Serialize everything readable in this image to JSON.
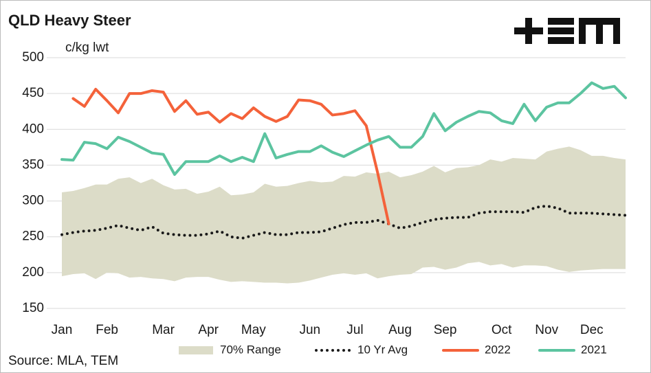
{
  "chart_data": {
    "type": "line",
    "title": "QLD Heavy Steer",
    "y_label": "c/kg lwt",
    "source": "Source: MLA, TEM",
    "categories": [
      "Jan",
      null,
      null,
      null,
      "Feb",
      null,
      null,
      null,
      null,
      "Mar",
      null,
      null,
      null,
      "Apr",
      null,
      null,
      null,
      "May",
      null,
      null,
      null,
      null,
      "Jun",
      null,
      null,
      null,
      "Jul",
      null,
      null,
      null,
      "Aug",
      null,
      null,
      null,
      "Sep",
      null,
      null,
      null,
      null,
      "Oct",
      null,
      null,
      null,
      "Nov",
      null,
      null,
      null,
      "Dec",
      null,
      null,
      null
    ],
    "ylim": [
      150,
      500
    ],
    "yticks": [
      150,
      200,
      250,
      300,
      350,
      400,
      450,
      500
    ],
    "grid": true,
    "series": [
      {
        "name": "70% Range",
        "color": "#dcdcc8",
        "low": [
          195,
          198,
          199,
          191,
          200,
          199,
          193,
          194,
          192,
          191,
          188,
          193,
          194,
          194,
          190,
          187,
          188,
          187,
          186,
          186,
          185,
          186,
          189,
          193,
          197,
          199,
          197,
          199,
          192,
          195,
          197,
          198,
          207,
          208,
          204,
          207,
          213,
          215,
          210,
          212,
          207,
          210,
          210,
          209,
          204,
          201,
          203,
          204,
          205,
          205,
          205
        ],
        "high": [
          312,
          314,
          318,
          323,
          323,
          331,
          333,
          325,
          331,
          322,
          316,
          317,
          310,
          313,
          320,
          308,
          309,
          312,
          324,
          320,
          321,
          325,
          328,
          326,
          327,
          335,
          334,
          340,
          338,
          341,
          333,
          336,
          341,
          349,
          340,
          346,
          347,
          350,
          358,
          355,
          360,
          359,
          358,
          369,
          373,
          376,
          371,
          363,
          363,
          360,
          358
        ]
      },
      {
        "name": "10 Yr Avg",
        "color": "#1a1a1a",
        "values": [
          253,
          256,
          258,
          259,
          262,
          266,
          262,
          259,
          264,
          255,
          253,
          252,
          252,
          254,
          258,
          250,
          248,
          252,
          256,
          253,
          253,
          256,
          256,
          257,
          262,
          267,
          270,
          270,
          273,
          268,
          262,
          265,
          270,
          274,
          276,
          277,
          277,
          283,
          285,
          285,
          285,
          284,
          291,
          293,
          290,
          283,
          283,
          283,
          282,
          281,
          280
        ]
      },
      {
        "name": "2022",
        "color": "#f4623a",
        "values": [
          null,
          443,
          432,
          456,
          440,
          423,
          450,
          450,
          454,
          452,
          425,
          440,
          421,
          424,
          410,
          422,
          415,
          430,
          418,
          411,
          418,
          441,
          440,
          435,
          420,
          422,
          426,
          405,
          340,
          268,
          null,
          null,
          null,
          null,
          null,
          null,
          null,
          null,
          null,
          null,
          null,
          null,
          null,
          null,
          null,
          null,
          null,
          null,
          null,
          null,
          null
        ]
      },
      {
        "name": "2021",
        "color": "#5cc4a0",
        "values": [
          358,
          357,
          382,
          380,
          373,
          389,
          383,
          375,
          367,
          365,
          337,
          355,
          355,
          355,
          363,
          355,
          361,
          355,
          394,
          360,
          365,
          369,
          369,
          377,
          368,
          362,
          370,
          378,
          385,
          390,
          375,
          375,
          390,
          422,
          398,
          410,
          418,
          425,
          423,
          412,
          408,
          435,
          412,
          431,
          437,
          437,
          450,
          465,
          457,
          460,
          444
        ]
      }
    ]
  }
}
